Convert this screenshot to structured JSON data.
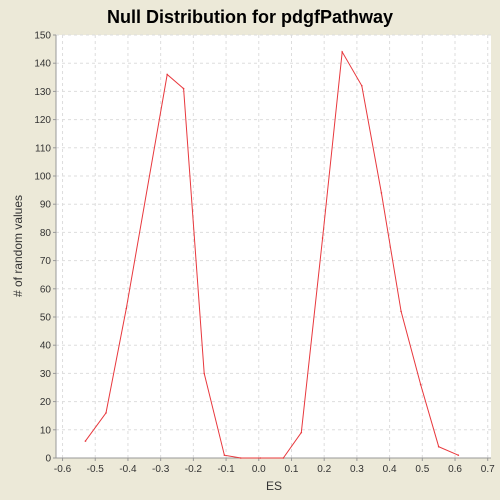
{
  "chart_data": {
    "type": "line",
    "title": "Null Distribution for pdgfPathway",
    "xlabel": "ES",
    "ylabel": "# of random values",
    "xlim": [
      -0.62,
      0.71
    ],
    "ylim": [
      0,
      150
    ],
    "x_ticks": [
      "-0.6",
      "-0.5",
      "-0.4",
      "-0.3",
      "-0.2",
      "-0.1",
      "0.0",
      "0.1",
      "0.2",
      "0.3",
      "0.4",
      "0.5",
      "0.6",
      "0.7"
    ],
    "x_tick_values": [
      -0.6,
      -0.5,
      -0.4,
      -0.3,
      -0.2,
      -0.1,
      0.0,
      0.1,
      0.2,
      0.3,
      0.4,
      0.5,
      0.6,
      0.7
    ],
    "y_ticks": [
      "0",
      "10",
      "20",
      "30",
      "40",
      "50",
      "60",
      "70",
      "80",
      "90",
      "100",
      "110",
      "120",
      "130",
      "140",
      "150"
    ],
    "y_tick_values": [
      0,
      10,
      20,
      30,
      40,
      50,
      60,
      70,
      80,
      90,
      100,
      110,
      120,
      130,
      140,
      150
    ],
    "grid": true,
    "series": [
      {
        "color": "#E8383D",
        "x": [
          -0.53,
          -0.467,
          -0.405,
          -0.28,
          -0.23,
          -0.167,
          -0.105,
          -0.055,
          0.005,
          0.075,
          0.13,
          0.195,
          0.255,
          0.315,
          0.375,
          0.435,
          0.495,
          0.55,
          0.61
        ],
        "y": [
          6,
          16,
          53,
          136,
          131,
          30,
          1,
          0,
          0,
          0,
          9,
          78,
          144,
          132,
          94,
          52,
          26,
          4,
          1
        ]
      }
    ]
  }
}
